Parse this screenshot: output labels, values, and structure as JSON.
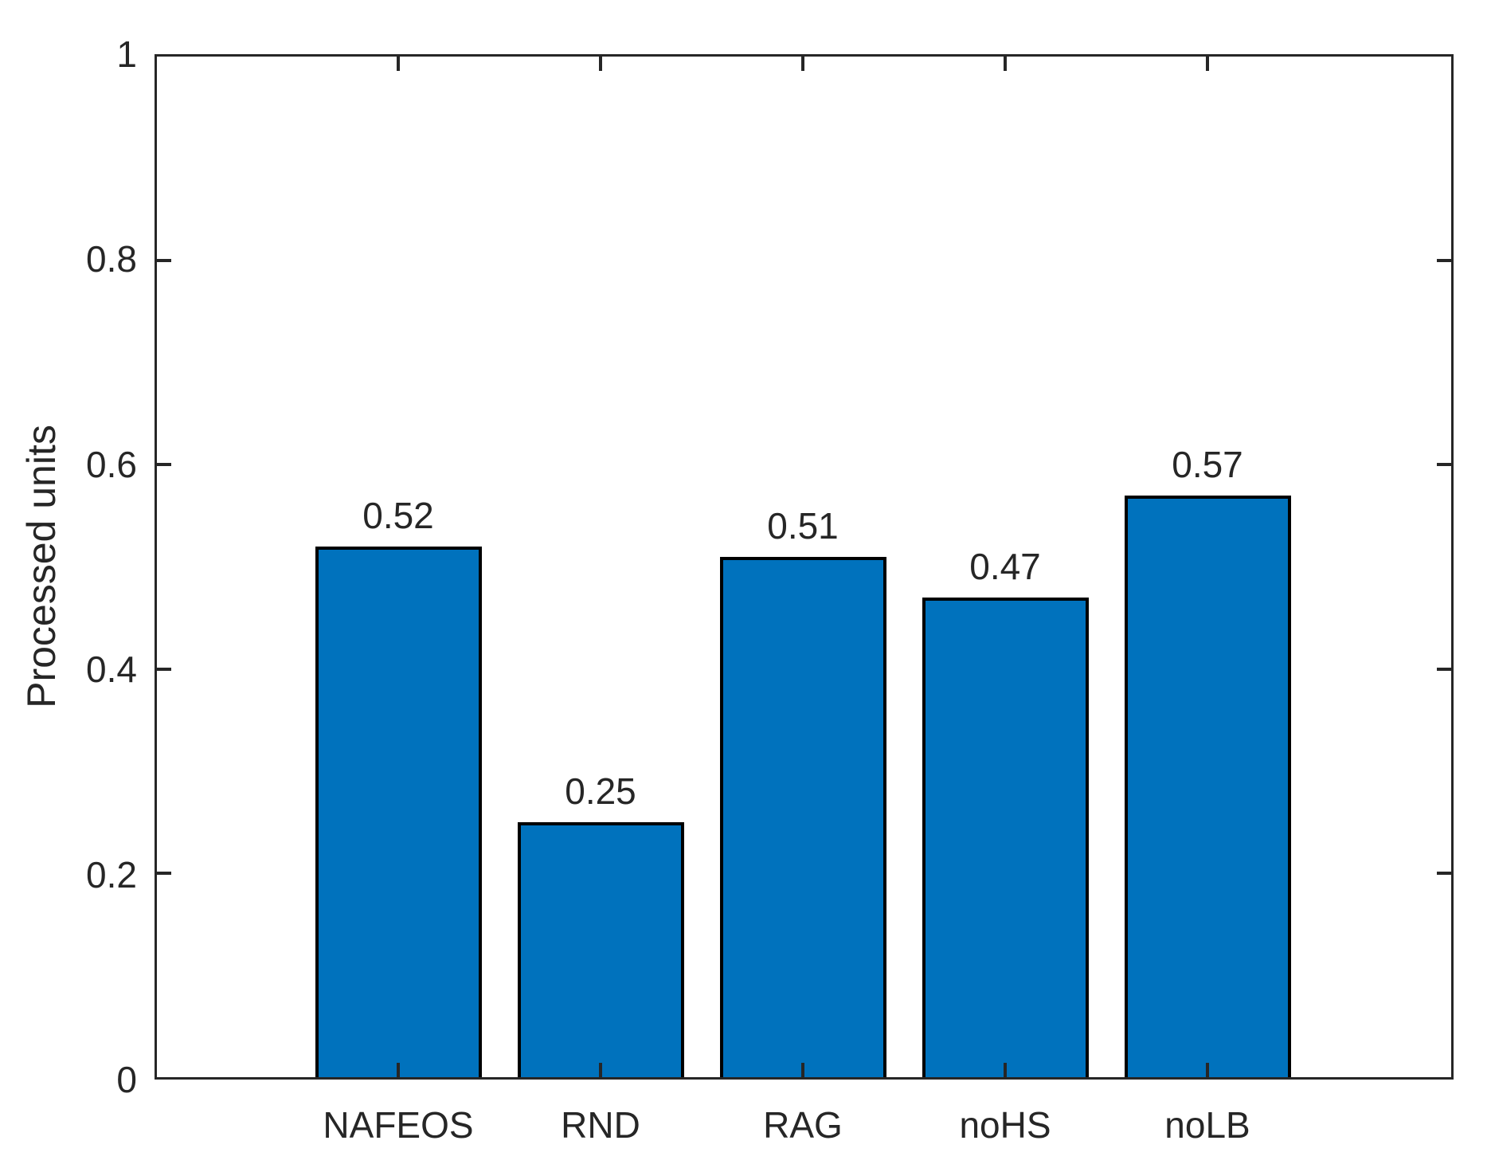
{
  "figure": {
    "background": "#ffffff"
  },
  "chart_data": {
    "type": "bar",
    "title": "",
    "categories": [
      "NAFEOS",
      "RND",
      "RAG",
      "noHS",
      "noLB"
    ],
    "values": [
      0.52,
      0.25,
      0.51,
      0.47,
      0.57
    ],
    "bar_value_labels": [
      "0.52",
      "0.25",
      "0.51",
      "0.47",
      "0.57"
    ],
    "xlabel": "",
    "ylabel": "Processed units",
    "ylim": [
      0,
      1
    ],
    "yticks": [
      0,
      0.2,
      0.4,
      0.6,
      0.8,
      1
    ],
    "ytick_labels": [
      "0",
      "0.2",
      "0.4",
      "0.6",
      "0.8",
      "1"
    ],
    "grid": false,
    "legend": "none",
    "bar_color": "#0072BD",
    "bar_edge_color": "#000000",
    "axis_color": "#262626",
    "text_color": "#262626"
  }
}
